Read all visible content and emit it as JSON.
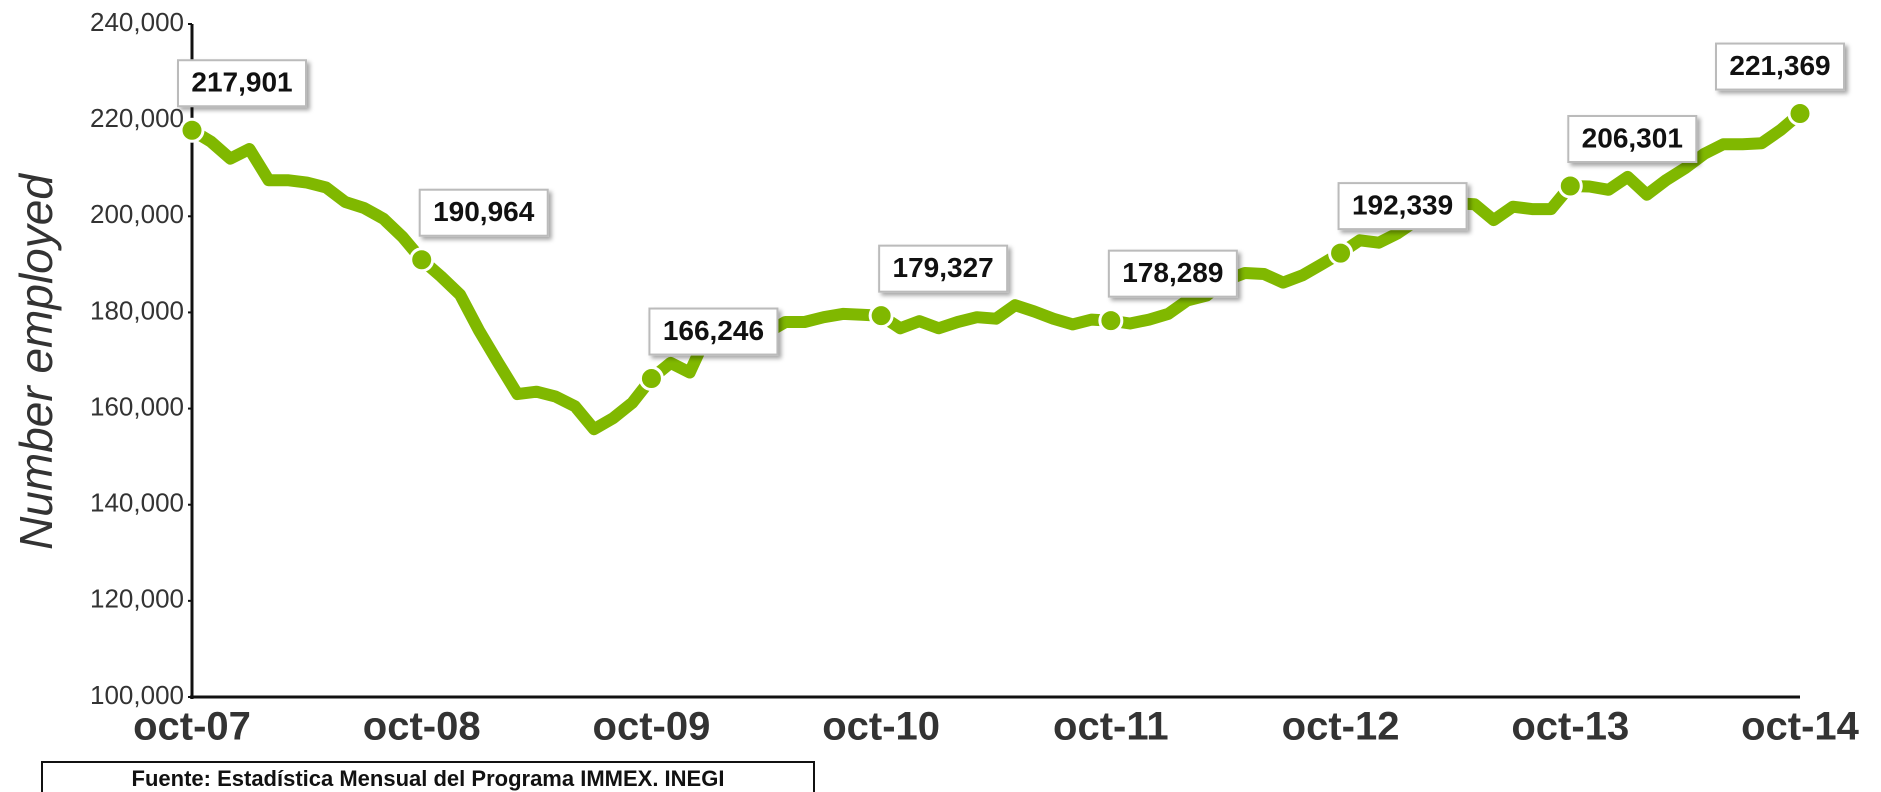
{
  "chart_data": {
    "type": "line",
    "y_label": "Number employed",
    "source": "Fuente: Estadística Mensual del Programa IMMEX. INEGI",
    "categories": [
      "oct-07",
      null,
      null,
      null,
      null,
      null,
      null,
      null,
      null,
      null,
      null,
      null,
      "oct-08",
      null,
      null,
      null,
      null,
      null,
      null,
      null,
      null,
      null,
      null,
      null,
      "oct-09",
      null,
      null,
      null,
      null,
      null,
      null,
      null,
      null,
      null,
      null,
      null,
      "oct-10",
      null,
      null,
      null,
      null,
      null,
      null,
      null,
      null,
      null,
      null,
      null,
      "oct-11",
      null,
      null,
      null,
      null,
      null,
      null,
      null,
      null,
      null,
      null,
      null,
      "oct-12",
      null,
      null,
      null,
      null,
      null,
      null,
      null,
      null,
      null,
      null,
      null,
      "oct-13",
      null,
      null,
      null,
      null,
      null,
      null,
      null,
      null,
      null,
      null,
      null,
      "oct-14"
    ],
    "series": [
      {
        "name": "Number employed",
        "color": "#80b800",
        "values": [
          217901,
          215500,
          212000,
          214000,
          207500,
          207500,
          207000,
          206000,
          203000,
          201700,
          199500,
          195700,
          190964,
          187500,
          183700,
          176200,
          169500,
          163000,
          163500,
          162500,
          160500,
          155700,
          158000,
          161200,
          166246,
          169500,
          167500,
          176200,
          178000,
          173700,
          175700,
          178000,
          178000,
          179000,
          179700,
          179500,
          179327,
          176700,
          178200,
          176700,
          178000,
          179000,
          178700,
          181500,
          180200,
          178700,
          177500,
          178500,
          178289,
          177700,
          178500,
          179700,
          182500,
          183500,
          186700,
          188200,
          188000,
          186200,
          187700,
          190000,
          192339,
          195000,
          194500,
          196500,
          199200,
          201700,
          202700,
          202500,
          199200,
          202000,
          201500,
          201500,
          206301,
          206200,
          205500,
          208200,
          204500,
          207500,
          210000,
          213000,
          215000,
          215000,
          215200,
          218000,
          221369
        ],
        "value_labels": [
          "217,901",
          null,
          null,
          null,
          null,
          null,
          null,
          null,
          null,
          null,
          null,
          null,
          "190,964",
          null,
          null,
          null,
          null,
          null,
          null,
          null,
          null,
          null,
          null,
          null,
          "166,246",
          null,
          null,
          null,
          null,
          null,
          null,
          null,
          null,
          null,
          null,
          null,
          "179,327",
          null,
          null,
          null,
          null,
          null,
          null,
          null,
          null,
          null,
          null,
          null,
          "178,289",
          null,
          null,
          null,
          null,
          null,
          null,
          null,
          null,
          null,
          null,
          null,
          "192,339",
          null,
          null,
          null,
          null,
          null,
          null,
          null,
          null,
          null,
          null,
          null,
          "206,301",
          null,
          null,
          null,
          null,
          null,
          null,
          null,
          null,
          null,
          null,
          null,
          "221,369"
        ]
      }
    ],
    "ylim": [
      100000,
      240000
    ],
    "yticks": [
      {
        "value": 100000,
        "label": "100,000"
      },
      {
        "value": 120000,
        "label": "120,000"
      },
      {
        "value": 140000,
        "label": "140,000"
      },
      {
        "value": 160000,
        "label": "160,000"
      },
      {
        "value": 180000,
        "label": "180,000"
      },
      {
        "value": 200000,
        "label": "200,000"
      },
      {
        "value": 220000,
        "label": "220,000"
      },
      {
        "value": 240000,
        "label": "240,000"
      }
    ],
    "grid": false
  }
}
